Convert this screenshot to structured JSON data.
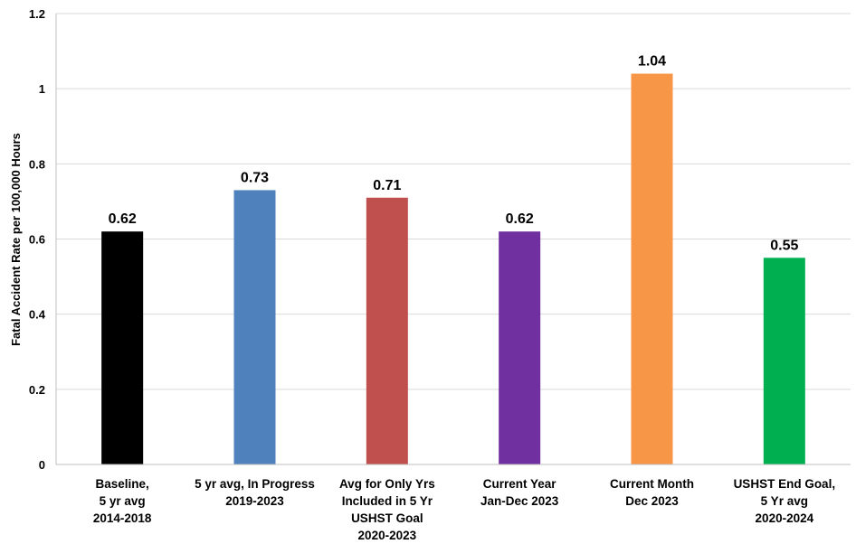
{
  "chart_data": {
    "type": "bar",
    "title": "",
    "xlabel": "",
    "ylabel": "Fatal Accident Rate per 100,000 Hours",
    "ylim": [
      0,
      1.2
    ],
    "yticks": [
      "0",
      "0.2",
      "0.4",
      "0.6",
      "0.8",
      "1",
      "1.2"
    ],
    "grid": true,
    "categories": [
      [
        "Baseline,",
        "5 yr avg",
        "2014-2018"
      ],
      [
        "5 yr avg, In Progress",
        "2019-2023"
      ],
      [
        "Avg for Only Yrs",
        "Included in 5 Yr",
        "USHST Goal",
        "2020-2023"
      ],
      [
        "Current Year",
        "Jan-Dec 2023"
      ],
      [
        "Current Month",
        "Dec 2023"
      ],
      [
        "USHST End Goal,",
        "5 Yr avg",
        "2020-2024"
      ]
    ],
    "values": [
      0.62,
      0.73,
      0.71,
      0.62,
      1.04,
      0.55
    ],
    "value_labels": [
      "0.62",
      "0.73",
      "0.71",
      "0.62",
      "1.04",
      "0.55"
    ],
    "colors": [
      "#000000",
      "#4f81bd",
      "#c0504d",
      "#7030a0",
      "#f79646",
      "#00b050"
    ]
  }
}
